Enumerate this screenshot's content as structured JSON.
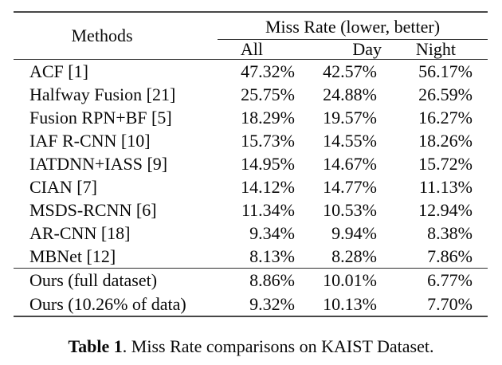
{
  "table": {
    "methods_header": "Methods",
    "group_header": "Miss Rate (lower, better)",
    "sub_headers": [
      "All",
      "Day",
      "Night"
    ],
    "rows": [
      {
        "method": "ACF [1]",
        "all": "47.32%",
        "day": "42.57%",
        "night": "56.17%"
      },
      {
        "method": "Halfway Fusion [21]",
        "all": "25.75%",
        "day": "24.88%",
        "night": "26.59%"
      },
      {
        "method": "Fusion RPN+BF [5]",
        "all": "18.29%",
        "day": "19.57%",
        "night": "16.27%"
      },
      {
        "method": "IAF R-CNN [10]",
        "all": "15.73%",
        "day": "14.55%",
        "night": "18.26%"
      },
      {
        "method": "IATDNN+IASS [9]",
        "all": "14.95%",
        "day": "14.67%",
        "night": "15.72%"
      },
      {
        "method": "CIAN [7]",
        "all": "14.12%",
        "day": "14.77%",
        "night": "11.13%"
      },
      {
        "method": "MSDS-RCNN [6]",
        "all": "11.34%",
        "day": "10.53%",
        "night": "12.94%"
      },
      {
        "method": "AR-CNN [18]",
        "all": "9.34%",
        "day": "9.94%",
        "night": "8.38%"
      },
      {
        "method": "MBNet [12]",
        "all": "8.13%",
        "day": "8.28%",
        "night": "7.86%"
      }
    ],
    "ours_rows": [
      {
        "method": "Ours (full dataset)",
        "all": "8.86%",
        "day": "10.01%",
        "night": "6.77%"
      },
      {
        "method": "Ours (10.26% of data)",
        "all": "9.32%",
        "day": "10.13%",
        "night": "7.70%"
      }
    ]
  },
  "caption": {
    "label": "Table 1",
    "text": ". Miss Rate comparisons on KAIST Dataset."
  },
  "colors": {
    "text": "#0a0a0a",
    "rule_thick": "#474747",
    "rule_thin": "#2e2e2e",
    "background": "#ffffff"
  },
  "chart_data": {
    "type": "table",
    "title": "Miss Rate comparisons on KAIST Dataset",
    "columns": [
      "Methods",
      "All",
      "Day",
      "Night"
    ],
    "unit": "%",
    "rows": [
      [
        "ACF [1]",
        47.32,
        42.57,
        56.17
      ],
      [
        "Halfway Fusion [21]",
        25.75,
        24.88,
        26.59
      ],
      [
        "Fusion RPN+BF [5]",
        18.29,
        19.57,
        16.27
      ],
      [
        "IAF R-CNN [10]",
        15.73,
        14.55,
        18.26
      ],
      [
        "IATDNN+IASS [9]",
        14.95,
        14.67,
        15.72
      ],
      [
        "CIAN [7]",
        14.12,
        14.77,
        11.13
      ],
      [
        "MSDS-RCNN [6]",
        11.34,
        10.53,
        12.94
      ],
      [
        "AR-CNN [18]",
        9.34,
        9.94,
        8.38
      ],
      [
        "MBNet [12]",
        8.13,
        8.28,
        7.86
      ],
      [
        "Ours (full dataset)",
        8.86,
        10.01,
        6.77
      ],
      [
        "Ours (10.26% of data)",
        9.32,
        10.13,
        7.7
      ]
    ]
  }
}
